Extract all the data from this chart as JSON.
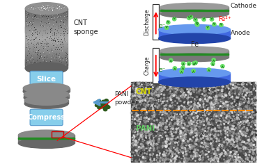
{
  "bg_color": "#ffffff",
  "title": "",
  "labels": {
    "cnt_sponge": "CNT\nsponge",
    "slice": "Slice",
    "pani_powder": "PANI\npowder",
    "compress": "Compress",
    "discharge": "Discharge",
    "charge": "Charge",
    "cathode": "Cathode",
    "anode": "Anode",
    "fe": "Fe",
    "fe2": "Fe²⁺",
    "eminus": "e⁻",
    "cnt": "CNT",
    "pani": "PANI"
  },
  "colors": {
    "cylinder_gray": "#808080",
    "cylinder_dark": "#555555",
    "green_stripe": "#228B22",
    "blue_electrode": "#4169E1",
    "blue_electrode_top": "#6699EE",
    "blue_electrode_bot": "#2244AA",
    "arrow_blue_fill": "#87CEEB",
    "arrow_blue_edge": "#5599CC",
    "arrow_red": "#CC0000",
    "green_dot": "#66DD66",
    "green_dot_arrow": "#228B22",
    "text_dark": "#222222",
    "text_yellow": "#DDDD00",
    "text_green": "#66CC66",
    "sem_bg": "#555555",
    "dashed_orange": "#FF8C00",
    "red_box": "#CC0000",
    "pani_dot": "#2D5A1B",
    "box_outline": "#333333"
  }
}
